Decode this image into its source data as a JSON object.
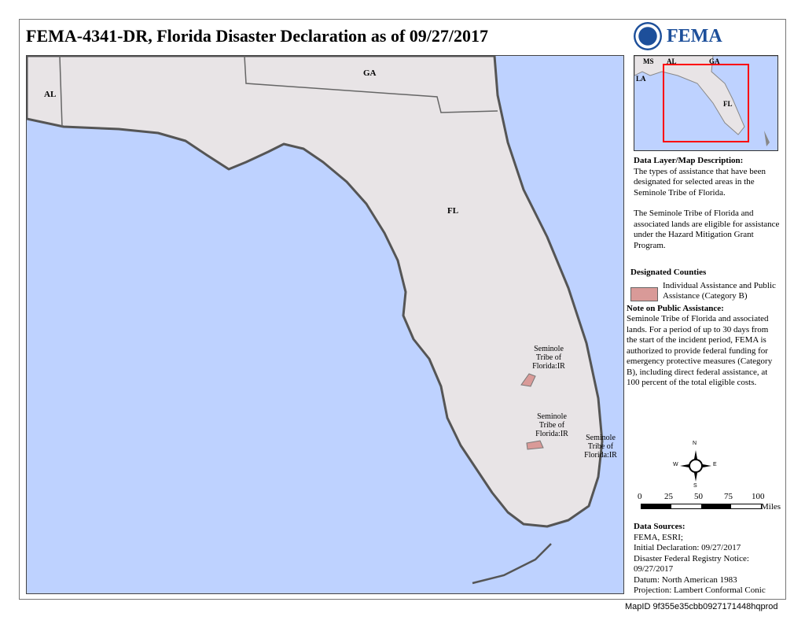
{
  "title": "FEMA-4341-DR, Florida Disaster Declaration as of 09/27/2017",
  "logo": {
    "text": "FEMA"
  },
  "colors": {
    "water": "#bed2ff",
    "land": "#e8e4e6",
    "designated": "#d99a98",
    "inset_box": "#ff0000"
  },
  "map": {
    "states": [
      "AL",
      "GA",
      "FL"
    ],
    "tribe_labels": [
      "Seminole Tribe of Florida:IR",
      "Seminole Tribe of Florida:IR",
      "Seminole Tribe of Florida:IR"
    ]
  },
  "inset": {
    "states": [
      "MS",
      "AL",
      "GA",
      "LA",
      "FL"
    ]
  },
  "description": {
    "heading": "Data Layer/Map Description:",
    "p1": "The types of assistance that have been designated for selected areas in the Seminole Tribe of Florida.",
    "p2": "The Seminole Tribe of Florida and associated lands are eligible for assistance under the Hazard Mitigation Grant Program."
  },
  "legend": {
    "heading": "Designated Counties",
    "item": "Individual Assistance and Public Assistance (Category B)"
  },
  "note": {
    "heading": "Note on Public Assistance:",
    "text": "Seminole Tribe of Florida and associated lands.  For a period of up to 30 days from the start of the incident period, FEMA is authorized to provide federal funding for emergency protective measures (Category B), including direct federal assistance, at 100 percent of the total eligible costs."
  },
  "compass": {
    "n": "N",
    "s": "S",
    "e": "E",
    "w": "W"
  },
  "scale": {
    "ticks": [
      "0",
      "25",
      "50",
      "75",
      "100"
    ],
    "unit": "Miles"
  },
  "sources": {
    "heading": "Data Sources:",
    "lines": [
      "FEMA, ESRI;",
      "Initial Declaration: 09/27/2017",
      "Disaster Federal Registry Notice: 09/27/2017",
      "Datum: North American 1983",
      "Projection: Lambert Conformal Conic"
    ]
  },
  "map_id": "MapID 9f355e35cbb0927171448hqprod"
}
